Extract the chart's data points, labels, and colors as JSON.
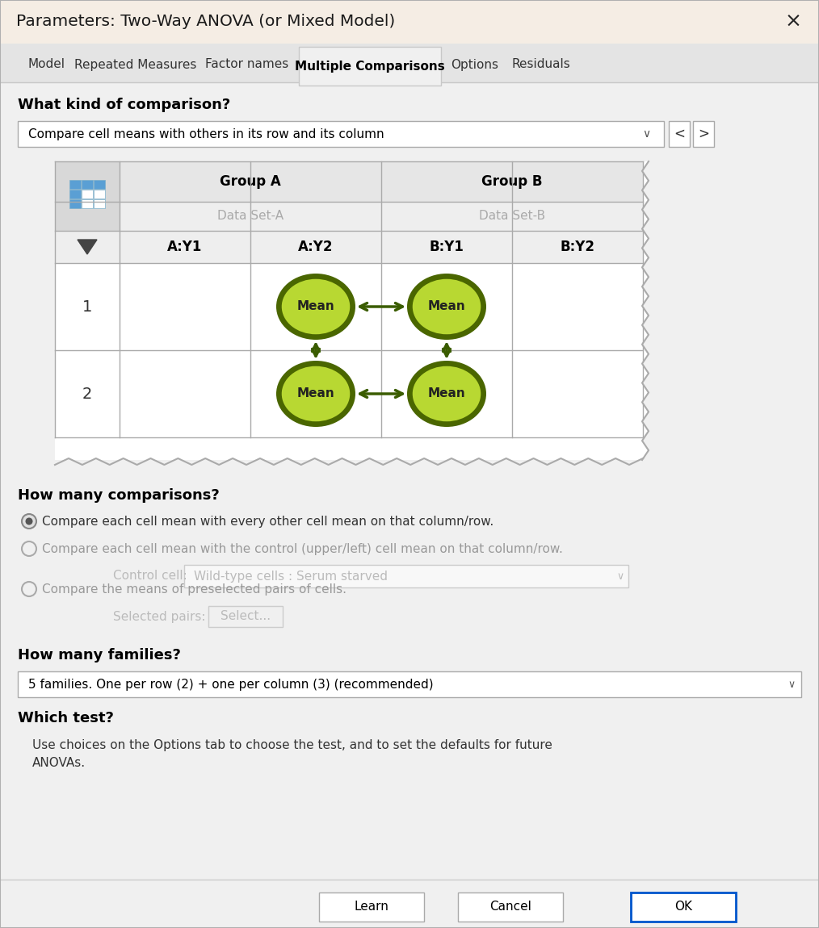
{
  "title": "Parameters: Two-Way ANOVA (or Mixed Model)",
  "title_bg": "#f5ede4",
  "main_bg": "#f0f0f0",
  "content_bg": "#f0f0f0",
  "tab_names": [
    "Model",
    "Repeated Measures",
    "Factor names",
    "Multiple Comparisons",
    "Options",
    "Residuals"
  ],
  "active_tab": "Multiple Comparisons",
  "section1_title": "What kind of comparison?",
  "dropdown1_text": "Compare cell means with others in its row and its column",
  "group_headers": [
    "Group A",
    "Group B"
  ],
  "dataset_labels": [
    "Data Set-A",
    "Data Set-B"
  ],
  "col_headers": [
    "A:Y1",
    "A:Y2",
    "B:Y1",
    "B:Y2"
  ],
  "row_labels": [
    "1",
    "2"
  ],
  "mean_fill": "#b8d832",
  "mean_border": "#4a6600",
  "arrow_color": "#3a5c00",
  "section2_title": "How many comparisons?",
  "radio_options": [
    "Compare each cell mean with every other cell mean on that column/row.",
    "Compare each cell mean with the control (upper/left) cell mean on that column/row.",
    "Compare the means of preselected pairs of cells."
  ],
  "radio_selected": 0,
  "control_cell_label": "Control cell:",
  "control_cell_value": "Wild-type cells : Serum starved",
  "selected_pairs_label": "Selected pairs:",
  "select_button_text": "Select...",
  "section3_title": "How many families?",
  "dropdown2_text": "5 families. One per row (2) + one per column (3) (recommended)",
  "section4_title": "Which test?",
  "which_test_line1": "Use choices on the Options tab to choose the test, and to set the defaults for future",
  "which_test_line2": "ANOVAs.",
  "btn_learn": "Learn",
  "btn_cancel": "Cancel",
  "btn_ok": "OK",
  "close_x": "×",
  "border_color": "#c0c0c0",
  "line_color": "#aaaaaa"
}
